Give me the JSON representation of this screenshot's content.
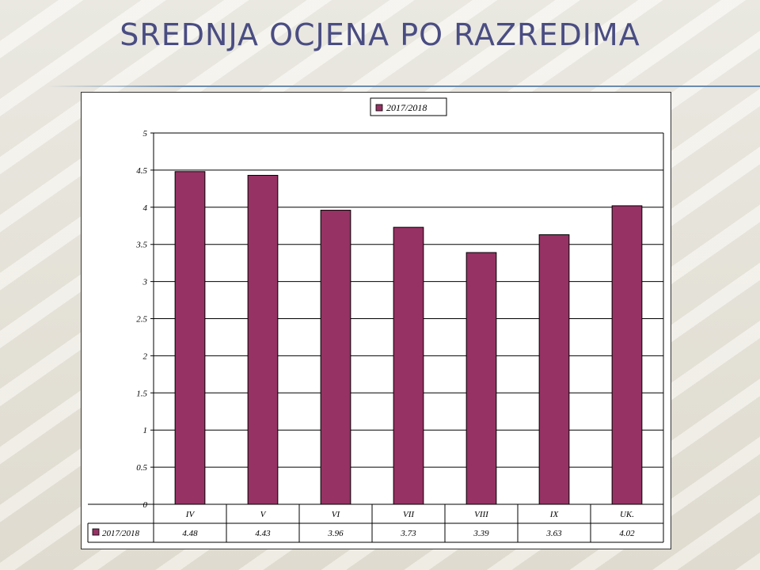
{
  "slide": {
    "title": "Srednja ocjena po razredima"
  },
  "chart_data": {
    "type": "bar",
    "categories": [
      "IV",
      "V",
      "VI",
      "VII",
      "VIII",
      "IX",
      "UK."
    ],
    "series": [
      {
        "name": "2017/2018",
        "values": [
          4.48,
          4.43,
          3.96,
          3.73,
          3.39,
          3.63,
          4.02
        ]
      }
    ],
    "value_labels": [
      "4.48",
      "4.43",
      "3.96",
      "3.73",
      "3.39",
      "3.63",
      "4.02"
    ],
    "ylim": [
      0,
      5
    ],
    "yticks": [
      "0",
      "0.5",
      "1",
      "1.5",
      "2",
      "2.5",
      "3",
      "3.5",
      "4",
      "4.5",
      "5"
    ],
    "legend_position": "top",
    "grid": true,
    "data_table": true,
    "colors": {
      "bar": "#963264",
      "grid": "#000000"
    }
  }
}
